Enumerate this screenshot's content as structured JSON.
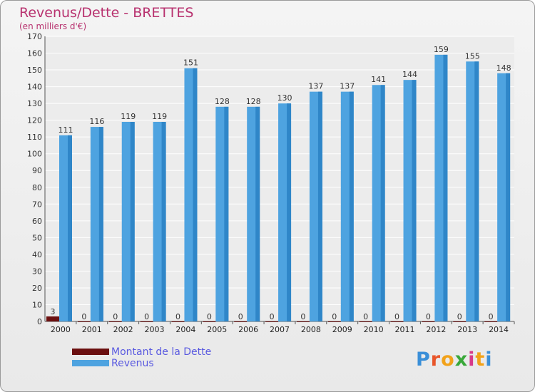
{
  "header": {
    "title": "Revenus/Dette - BRETTES",
    "subtitle": "(en milliers d'€)"
  },
  "colors": {
    "title": "#b8326f",
    "dette": "#6b0f0f",
    "revenus": "#4ea3e0",
    "legend_text": "#5a5ae0"
  },
  "chart_data": {
    "type": "bar",
    "title": "Revenus/Dette - BRETTES",
    "subtitle": "(en milliers d'€)",
    "categories": [
      "2000",
      "2001",
      "2002",
      "2003",
      "2004",
      "2005",
      "2006",
      "2007",
      "2008",
      "2009",
      "2010",
      "2011",
      "2012",
      "2013",
      "2014"
    ],
    "series": [
      {
        "name": "Montant de la Dette",
        "color": "#6b0f0f",
        "values": [
          3,
          0,
          0,
          0,
          0,
          0,
          0,
          0,
          0,
          0,
          0,
          0,
          0,
          0,
          0
        ]
      },
      {
        "name": "Revenus",
        "color": "#4ea3e0",
        "values": [
          111,
          116,
          119,
          119,
          151,
          128,
          128,
          130,
          137,
          137,
          141,
          144,
          159,
          155,
          148
        ]
      }
    ],
    "ylim": [
      0,
      170
    ],
    "ytick_step": 10,
    "grid": true,
    "legend_position": "bottom-left"
  },
  "legend": {
    "items": [
      {
        "label": "Montant de la Dette",
        "color": "#6b0f0f"
      },
      {
        "label": "Revenus",
        "color": "#4ea3e0"
      }
    ]
  },
  "logo": {
    "letters": [
      "P",
      "r",
      "o",
      "x",
      "i",
      "t",
      "i"
    ],
    "colors": [
      "#3a8fd8",
      "#e8552a",
      "#f2a21a",
      "#3aa83a",
      "#d83a8a",
      "#f2a21a",
      "#3a8fd8"
    ]
  }
}
